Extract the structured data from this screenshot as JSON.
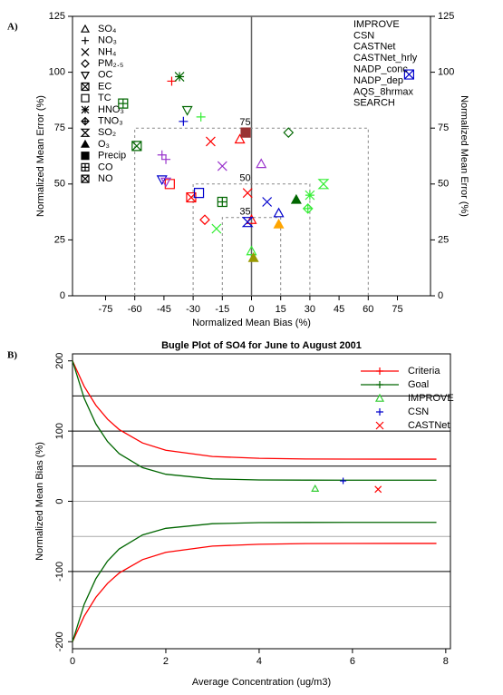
{
  "chart_data": [
    {
      "type": "scatter",
      "panel": "A)",
      "x_label": "Normalized Mean Bias (%)",
      "y_label": "Normalized Mean Error (%)",
      "y2_label": "Normalized Mean Error (%)",
      "xlim": [
        -92,
        92
      ],
      "ylim": [
        0,
        125
      ],
      "xticks": [
        -75,
        -60,
        -45,
        -30,
        -15,
        0,
        15,
        30,
        45,
        60,
        75
      ],
      "yticks": [
        0,
        25,
        50,
        75,
        100,
        125
      ],
      "y2ticks": [
        0,
        25,
        50,
        75,
        100,
        125
      ],
      "ref_x": 0,
      "zones": [
        {
          "bias": 60,
          "error": 75
        },
        {
          "bias": 30,
          "error": 50
        },
        {
          "bias": 15,
          "error": 35
        }
      ],
      "markers": [
        {
          "name": "SO₄",
          "marker": "triangle"
        },
        {
          "name": "NO₃",
          "marker": "plus"
        },
        {
          "name": "NH₄",
          "marker": "x"
        },
        {
          "name": "PM₂.₅",
          "marker": "diamond"
        },
        {
          "name": "OC",
          "marker": "down-triangle"
        },
        {
          "name": "EC",
          "marker": "square-x"
        },
        {
          "name": "TC",
          "marker": "square"
        },
        {
          "name": "HNO₃",
          "marker": "asterisk"
        },
        {
          "name": "TNO₃",
          "marker": "diamond-plus"
        },
        {
          "name": "SO₂",
          "marker": "hourglass"
        },
        {
          "name": "O₃",
          "marker": "filled-triangle"
        },
        {
          "name": "Precip",
          "marker": "filled-square"
        },
        {
          "name": "CO",
          "marker": "square-plus"
        },
        {
          "name": "NO",
          "marker": "square-x"
        }
      ],
      "series": [
        {
          "name": "IMPROVE",
          "color": "#ff0000",
          "x": [
            -41,
            -6,
            -21,
            -42,
            -2,
            -31,
            -24,
            0
          ],
          "values": [
            96,
            70,
            69,
            50,
            46,
            44,
            34,
            34
          ],
          "species": [
            "NO₃",
            "SO₄",
            "NH₄",
            "TC",
            "NH₄",
            "EC",
            "PM₂.₅",
            "SO₄"
          ]
        },
        {
          "name": "CSN",
          "color": "#0000cc",
          "x": [
            81,
            -35,
            -46,
            8,
            14,
            -27,
            -2
          ],
          "values": [
            99,
            78,
            52,
            42,
            37,
            46,
            33
          ],
          "species": [
            "NO",
            "NO₃",
            "OC",
            "NH₄",
            "SO₄",
            "TC",
            "SO₂"
          ]
        },
        {
          "name": "CASTNet",
          "color": "#33ee33",
          "x": [
            -26,
            30,
            37,
            29,
            -18,
            0
          ],
          "values": [
            80,
            45,
            50,
            39,
            30,
            20
          ],
          "species": [
            "NO₃",
            "HNO₃",
            "SO₂",
            "TNO₃",
            "NH₄",
            "SO₄"
          ]
        },
        {
          "name": "CASTNet_hrly",
          "color": "#ffa500",
          "x": [
            14
          ],
          "values": [
            32
          ],
          "species": [
            "O₃"
          ]
        },
        {
          "name": "NADP_conc",
          "color": "#9933cc",
          "x": [
            -46,
            -44,
            5,
            -15,
            -44
          ],
          "values": [
            63,
            61,
            59,
            58,
            51
          ],
          "species": [
            "NO₃",
            "NO₃",
            "SO₄",
            "NH₄",
            "OC"
          ]
        },
        {
          "name": "NADP_dep",
          "color": "#993333",
          "x": [
            -3
          ],
          "values": [
            73
          ],
          "species": [
            "Precip"
          ]
        },
        {
          "name": "AQS_8hrmax",
          "color": "#999900",
          "x": [
            1
          ],
          "values": [
            17
          ],
          "species": [
            "O₃"
          ]
        },
        {
          "name": "SEARCH",
          "color": "#006600",
          "x": [
            -37,
            -66,
            -33,
            19,
            -59,
            23,
            -15
          ],
          "values": [
            98,
            86,
            83,
            73,
            67,
            43,
            42
          ],
          "species": [
            "HNO₃",
            "CO",
            "OC",
            "PM₂.₅",
            "NO",
            "O₃",
            "CO"
          ]
        }
      ]
    },
    {
      "type": "line",
      "panel": "B)",
      "title": "Bugle Plot of SO4 for June to August 2001",
      "x_label": "Average Concentration (ug/m3)",
      "y_label": "Normalized Mean Bias (%)",
      "xlim": [
        0,
        8.1
      ],
      "ylim": [
        -210,
        210
      ],
      "xticks": [
        0,
        2,
        4,
        6,
        8
      ],
      "yticks": [
        -200,
        -100,
        0,
        100,
        200
      ],
      "hlines": [
        {
          "value": 150,
          "color": "#000000"
        },
        {
          "value": 100,
          "color": "#000000"
        },
        {
          "value": 50,
          "color": "#000000"
        },
        {
          "value": 0,
          "color": "#aaaaaa"
        },
        {
          "value": -50,
          "color": "#aaaaaa"
        },
        {
          "value": -100,
          "color": "#000000"
        },
        {
          "value": -150,
          "color": "#aaaaaa"
        }
      ],
      "series": [
        {
          "name": "Criteria",
          "color": "#ff0000",
          "style": "line",
          "marker": "plus",
          "x": [
            0,
            0.25,
            0.5,
            0.75,
            1,
            1.5,
            2,
            3,
            4,
            5,
            6,
            7,
            7.8
          ],
          "values": [
            200,
            163.7,
            136.8,
            117,
            102.2,
            83.1,
            72.7,
            63.8,
            61.2,
            60.3,
            60.1,
            60,
            60
          ],
          "lower": [
            -200,
            -163.7,
            -136.8,
            -117,
            -102.2,
            -83.1,
            -72.7,
            -63.8,
            -61.2,
            -60.3,
            -60.1,
            -60,
            -60
          ]
        },
        {
          "name": "Goal",
          "color": "#006600",
          "style": "line",
          "marker": "plus",
          "x": [
            0,
            0.25,
            0.5,
            0.75,
            1,
            1.5,
            2,
            3,
            4,
            5,
            6,
            7,
            7.8
          ],
          "values": [
            200,
            146.8,
            110.3,
            85.2,
            67.9,
            47.9,
            38.5,
            31.9,
            30.4,
            30.1,
            30,
            30,
            30
          ],
          "lower": [
            -200,
            -146.8,
            -110.3,
            -85.2,
            -67.9,
            -47.9,
            -38.5,
            -31.9,
            -30.4,
            -30.1,
            -30,
            -30,
            -30
          ]
        },
        {
          "name": "IMPROVE",
          "color": "#33cc33",
          "style": "points",
          "marker": "triangle",
          "x": [
            5.2
          ],
          "values": [
            18
          ]
        },
        {
          "name": "CSN",
          "color": "#0000cc",
          "style": "points",
          "marker": "plus",
          "x": [
            5.8
          ],
          "values": [
            29
          ]
        },
        {
          "name": "CASTNet",
          "color": "#ff0000",
          "style": "points",
          "marker": "x",
          "x": [
            6.55
          ],
          "values": [
            17
          ]
        }
      ]
    }
  ]
}
